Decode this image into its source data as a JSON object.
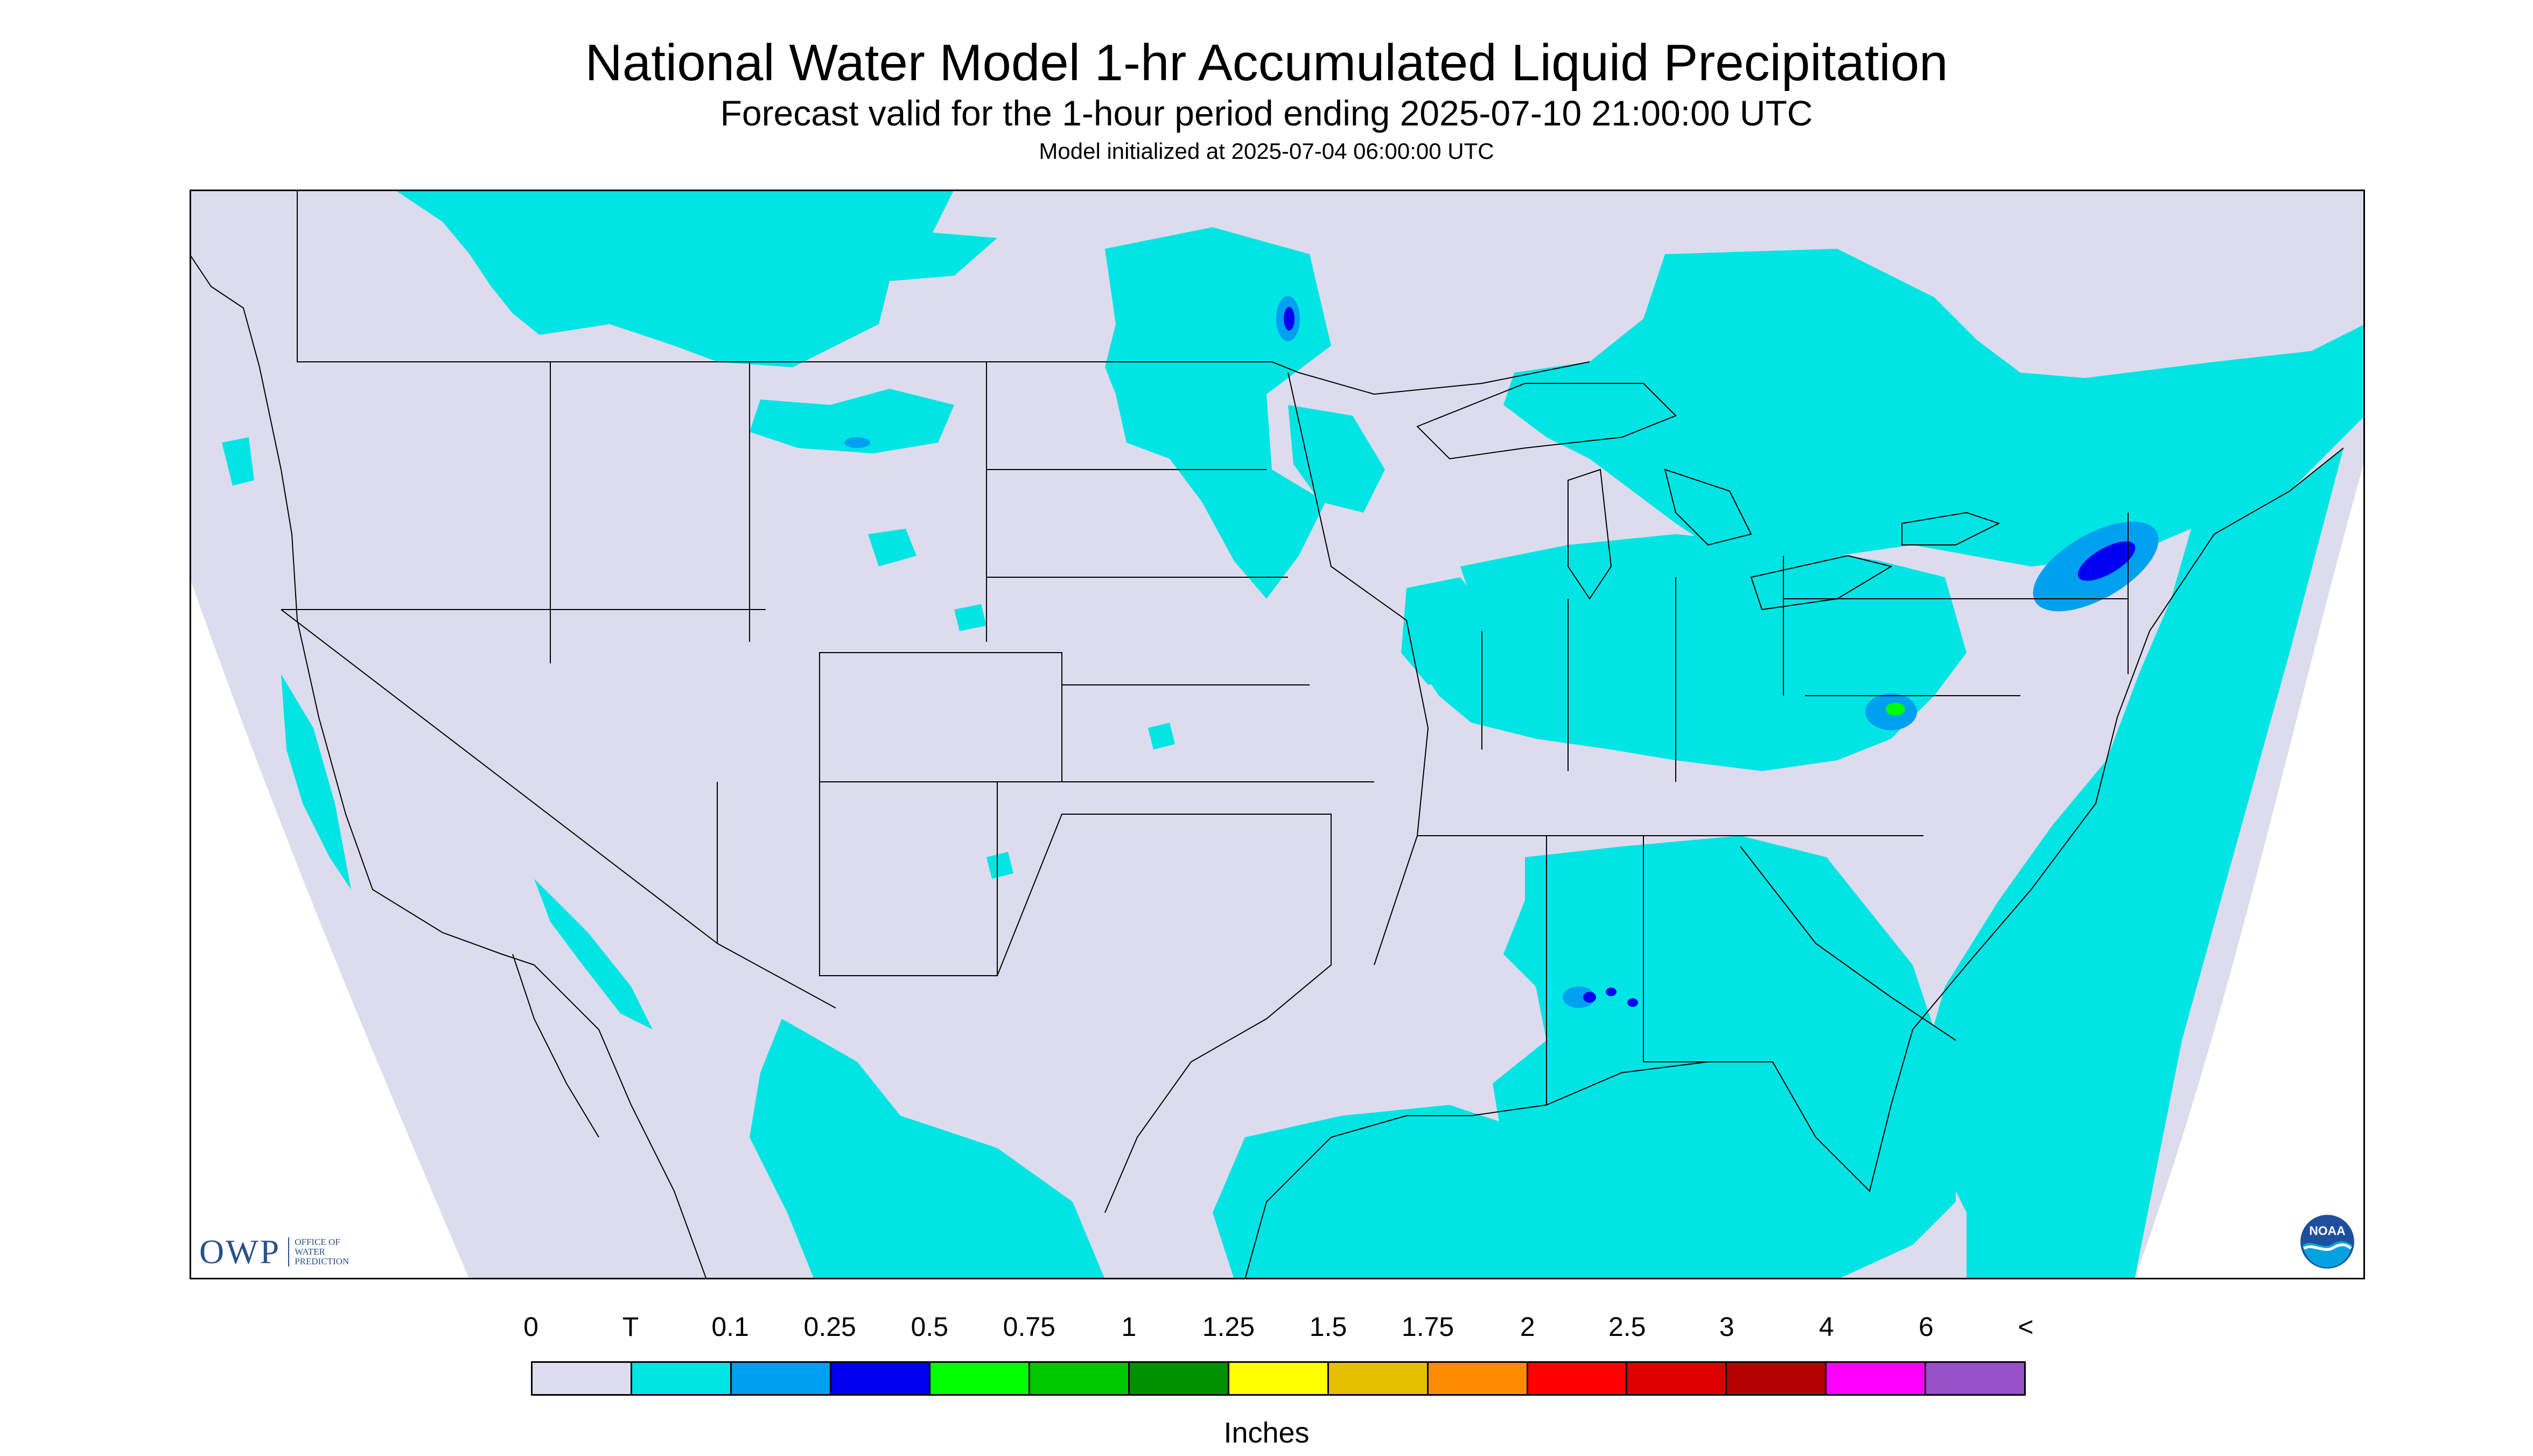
{
  "header": {
    "title": "National Water Model 1-hr Accumulated Liquid Precipitation",
    "subtitle": "Forecast valid for the 1-hour period ending 2025-07-10 21:00:00 UTC",
    "init_line": "Model initialized at 2025-07-04 06:00:00 UTC"
  },
  "logos": {
    "owp_abbrev": "OWP",
    "owp_full": "OFFICE OF\nWATER\nPREDICTION",
    "noaa_text": "NOAA"
  },
  "legend": {
    "labels": [
      "0",
      "T",
      "0.1",
      "0.25",
      "0.5",
      "0.75",
      "1",
      "1.25",
      "1.5",
      "1.75",
      "2",
      "2.5",
      "3",
      "4",
      "6",
      "<"
    ],
    "colors": [
      "#dcdcee",
      "#00e4e4",
      "#00a0f0",
      "#0000f0",
      "#00ff00",
      "#00c800",
      "#009000",
      "#ffff00",
      "#e6be00",
      "#ff8c00",
      "#ff0000",
      "#dc0000",
      "#b40000",
      "#ff00ff",
      "#9650c8"
    ],
    "units": "Inches"
  },
  "map": {
    "background_color": "#dcdcee",
    "trace_color": "#00e4e4",
    "light_color": "#00a0f0",
    "moderate_color": "#0000f0",
    "heavy_color": "#00ff00",
    "border_color": "#000000"
  }
}
